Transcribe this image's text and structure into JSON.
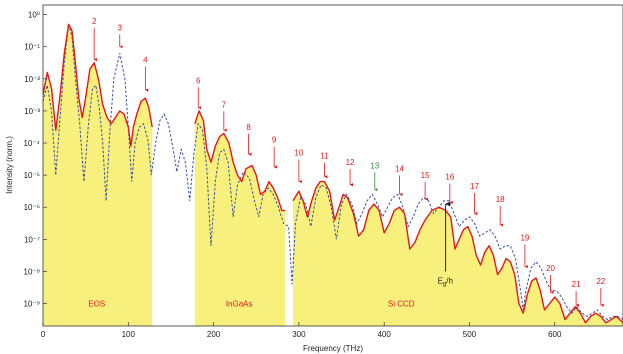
{
  "chart_data": {
    "type": "line",
    "title": "",
    "xlabel": "Frequency (THz)",
    "ylabel": "Intensity (norm.)",
    "xlim": [
      0,
      680
    ],
    "ylim_log10": [
      -9.7,
      0.3
    ],
    "log_y": true,
    "grid": false,
    "x_ticks": [
      0,
      100,
      200,
      300,
      400,
      500,
      600
    ],
    "y_ticks": [
      "10⁰",
      "10⁻¹",
      "10⁻²",
      "10⁻³",
      "10⁻⁴",
      "10⁻⁵",
      "10⁻⁶",
      "10⁻⁷",
      "10⁻⁸",
      "10⁻⁹"
    ],
    "y_tick_exponents": [
      0,
      -1,
      -2,
      -3,
      -4,
      -5,
      -6,
      -7,
      -8,
      -9
    ],
    "series": [
      {
        "color": "#e0191b",
        "style": "solid",
        "points": [
          [
            0,
            -2.5
          ],
          [
            5,
            -1.8
          ],
          [
            10,
            -2.3
          ],
          [
            15,
            -3.6
          ],
          [
            20,
            -2.5
          ],
          [
            25,
            -1.2
          ],
          [
            30,
            -0.3
          ],
          [
            34,
            -0.5
          ],
          [
            38,
            -1.5
          ],
          [
            42,
            -2.6
          ],
          [
            46,
            -3.2
          ],
          [
            50,
            -2.6
          ],
          [
            55,
            -1.7
          ],
          [
            60,
            -1.5
          ],
          [
            65,
            -2.0
          ],
          [
            70,
            -2.8
          ],
          [
            75,
            -3.2
          ],
          [
            80,
            -3.4
          ],
          [
            85,
            -3.2
          ],
          [
            90,
            -3.0
          ],
          [
            95,
            -3.1
          ],
          [
            100,
            -3.5
          ],
          [
            103,
            -4.1
          ],
          [
            106,
            -3.5
          ],
          [
            110,
            -3.1
          ],
          [
            115,
            -2.7
          ],
          [
            120,
            -2.6
          ],
          [
            124,
            -2.9
          ],
          [
            128,
            -3.5
          ],
          [
            178,
            -3.4
          ],
          [
            183,
            -3.0
          ],
          [
            188,
            -3.3
          ],
          [
            192,
            -4.2
          ],
          [
            197,
            -4.6
          ],
          [
            202,
            -4.1
          ],
          [
            207,
            -3.8
          ],
          [
            212,
            -3.7
          ],
          [
            218,
            -4.0
          ],
          [
            223,
            -4.6
          ],
          [
            228,
            -5.0
          ],
          [
            233,
            -5.2
          ],
          [
            238,
            -4.8
          ],
          [
            245,
            -4.7
          ],
          [
            250,
            -5.0
          ],
          [
            255,
            -5.6
          ],
          [
            260,
            -5.5
          ],
          [
            265,
            -5.2
          ],
          [
            270,
            -5.4
          ],
          [
            275,
            -5.7
          ],
          [
            280,
            -6.1
          ],
          [
            284,
            -6.1
          ],
          [
            293,
            -5.8
          ],
          [
            300,
            -5.5
          ],
          [
            305,
            -5.8
          ],
          [
            310,
            -6.3
          ],
          [
            315,
            -5.8
          ],
          [
            320,
            -5.4
          ],
          [
            325,
            -5.2
          ],
          [
            330,
            -5.2
          ],
          [
            336,
            -5.5
          ],
          [
            342,
            -6.4
          ],
          [
            347,
            -6.0
          ],
          [
            352,
            -5.6
          ],
          [
            357,
            -5.7
          ],
          [
            364,
            -6.2
          ],
          [
            370,
            -6.9
          ],
          [
            376,
            -6.7
          ],
          [
            382,
            -6.1
          ],
          [
            388,
            -5.9
          ],
          [
            394,
            -6.1
          ],
          [
            400,
            -6.8
          ],
          [
            406,
            -6.5
          ],
          [
            412,
            -6.1
          ],
          [
            418,
            -6.0
          ],
          [
            424,
            -6.2
          ],
          [
            430,
            -7.3
          ],
          [
            436,
            -7.1
          ],
          [
            442,
            -6.7
          ],
          [
            448,
            -6.4
          ],
          [
            456,
            -6.1
          ],
          [
            464,
            -6.0
          ],
          [
            472,
            -6.1
          ],
          [
            478,
            -6.3
          ],
          [
            483,
            -7.3
          ],
          [
            488,
            -7.0
          ],
          [
            493,
            -6.7
          ],
          [
            498,
            -6.6
          ],
          [
            503,
            -6.9
          ],
          [
            508,
            -7.5
          ],
          [
            513,
            -7.8
          ],
          [
            518,
            -7.4
          ],
          [
            523,
            -7.2
          ],
          [
            528,
            -7.5
          ],
          [
            533,
            -8.1
          ],
          [
            538,
            -7.9
          ],
          [
            543,
            -7.6
          ],
          [
            548,
            -7.7
          ],
          [
            553,
            -8.1
          ],
          [
            558,
            -9.0
          ],
          [
            563,
            -9.3
          ],
          [
            568,
            -8.7
          ],
          [
            573,
            -8.3
          ],
          [
            578,
            -8.2
          ],
          [
            583,
            -8.6
          ],
          [
            588,
            -9.2
          ],
          [
            594,
            -9.0
          ],
          [
            600,
            -8.8
          ],
          [
            606,
            -9.0
          ],
          [
            612,
            -9.5
          ],
          [
            618,
            -9.3
          ],
          [
            624,
            -9.1
          ],
          [
            630,
            -9.3
          ],
          [
            636,
            -9.6
          ],
          [
            642,
            -9.4
          ],
          [
            648,
            -9.3
          ],
          [
            654,
            -9.4
          ],
          [
            660,
            -9.6
          ],
          [
            666,
            -9.5
          ],
          [
            672,
            -9.4
          ],
          [
            680,
            -9.6
          ]
        ]
      },
      {
        "color": "#3a4fa0",
        "style": "dashed",
        "points": [
          [
            0,
            -2.7
          ],
          [
            5,
            -2.2
          ],
          [
            10,
            -3.0
          ],
          [
            15,
            -5.0
          ],
          [
            20,
            -3.2
          ],
          [
            25,
            -1.5
          ],
          [
            30,
            -0.3
          ],
          [
            34,
            -0.7
          ],
          [
            38,
            -2.0
          ],
          [
            43,
            -3.4
          ],
          [
            48,
            -5.2
          ],
          [
            53,
            -3.5
          ],
          [
            58,
            -2.3
          ],
          [
            62,
            -2.2
          ],
          [
            66,
            -2.9
          ],
          [
            70,
            -4.0
          ],
          [
            74,
            -5.8
          ],
          [
            78,
            -3.8
          ],
          [
            83,
            -2.0
          ],
          [
            90,
            -1.2
          ],
          [
            96,
            -2.0
          ],
          [
            100,
            -3.5
          ],
          [
            104,
            -5.2
          ],
          [
            108,
            -4.0
          ],
          [
            113,
            -3.5
          ],
          [
            118,
            -3.4
          ],
          [
            123,
            -3.9
          ],
          [
            127,
            -5.0
          ],
          [
            132,
            -4.0
          ],
          [
            137,
            -3.3
          ],
          [
            142,
            -3.1
          ],
          [
            147,
            -3.4
          ],
          [
            152,
            -4.1
          ],
          [
            157,
            -4.9
          ],
          [
            162,
            -4.2
          ],
          [
            167,
            -4.6
          ],
          [
            172,
            -5.8
          ],
          [
            177,
            -4.3
          ],
          [
            182,
            -3.4
          ],
          [
            187,
            -3.6
          ],
          [
            192,
            -4.8
          ],
          [
            197,
            -7.2
          ],
          [
            202,
            -5.2
          ],
          [
            207,
            -4.3
          ],
          [
            212,
            -4.2
          ],
          [
            217,
            -4.6
          ],
          [
            223,
            -6.3
          ],
          [
            228,
            -5.3
          ],
          [
            235,
            -4.9
          ],
          [
            242,
            -5.1
          ],
          [
            248,
            -5.8
          ],
          [
            253,
            -6.3
          ],
          [
            258,
            -5.6
          ],
          [
            264,
            -5.4
          ],
          [
            270,
            -5.6
          ],
          [
            276,
            -6.0
          ],
          [
            282,
            -6.5
          ],
          [
            288,
            -6.6
          ],
          [
            292,
            -8.4
          ],
          [
            296,
            -6.5
          ],
          [
            302,
            -5.7
          ],
          [
            308,
            -5.9
          ],
          [
            314,
            -6.6
          ],
          [
            320,
            -5.7
          ],
          [
            326,
            -5.3
          ],
          [
            332,
            -5.4
          ],
          [
            338,
            -6.0
          ],
          [
            344,
            -7.0
          ],
          [
            350,
            -5.9
          ],
          [
            356,
            -5.6
          ],
          [
            362,
            -5.9
          ],
          [
            368,
            -6.5
          ],
          [
            374,
            -6.2
          ],
          [
            380,
            -5.8
          ],
          [
            386,
            -5.6
          ],
          [
            392,
            -5.9
          ],
          [
            398,
            -6.3
          ],
          [
            404,
            -6.0
          ],
          [
            410,
            -5.7
          ],
          [
            416,
            -5.6
          ],
          [
            422,
            -6.0
          ],
          [
            428,
            -6.6
          ],
          [
            434,
            -6.3
          ],
          [
            440,
            -5.9
          ],
          [
            446,
            -5.7
          ],
          [
            452,
            -5.8
          ],
          [
            458,
            -6.2
          ],
          [
            464,
            -6.0
          ],
          [
            470,
            -5.8
          ],
          [
            476,
            -5.8
          ],
          [
            482,
            -6.2
          ],
          [
            488,
            -6.6
          ],
          [
            494,
            -6.4
          ],
          [
            500,
            -6.3
          ],
          [
            506,
            -6.5
          ],
          [
            512,
            -6.9
          ],
          [
            518,
            -6.8
          ],
          [
            524,
            -6.7
          ],
          [
            530,
            -6.9
          ],
          [
            536,
            -7.3
          ],
          [
            542,
            -7.2
          ],
          [
            548,
            -7.2
          ],
          [
            554,
            -7.6
          ],
          [
            560,
            -8.6
          ],
          [
            563,
            -9.2
          ],
          [
            566,
            -8.6
          ],
          [
            572,
            -7.9
          ],
          [
            578,
            -7.7
          ],
          [
            584,
            -7.9
          ],
          [
            590,
            -8.3
          ],
          [
            596,
            -8.6
          ],
          [
            602,
            -8.6
          ],
          [
            608,
            -8.8
          ],
          [
            614,
            -9.1
          ],
          [
            620,
            -9.3
          ],
          [
            626,
            -9.1
          ],
          [
            632,
            -9.3
          ],
          [
            638,
            -9.4
          ],
          [
            644,
            -9.3
          ],
          [
            650,
            -9.2
          ],
          [
            656,
            -9.4
          ],
          [
            662,
            -9.5
          ],
          [
            668,
            -9.4
          ],
          [
            674,
            -9.4
          ],
          [
            680,
            -9.5
          ]
        ]
      }
    ],
    "fill_color": "#f7f07c",
    "fill_segments": [
      [
        0,
        128
      ],
      [
        178,
        284
      ],
      [
        293,
        680
      ]
    ],
    "regions": [
      {
        "label": "EOS",
        "x": 63,
        "y": -9.1
      },
      {
        "label": "InGaAs",
        "x": 230,
        "y": -9.1
      },
      {
        "label": "Si CCD",
        "x": 420,
        "y": -9.1
      }
    ],
    "peak_annotations": [
      {
        "label": "2",
        "x": 60,
        "y_top": -0.35,
        "y_tip": -1.4,
        "color": "#e0191b"
      },
      {
        "label": "3",
        "x": 90,
        "y_top": -0.55,
        "y_tip": -1.0,
        "color": "#e0191b"
      },
      {
        "label": "4",
        "x": 120,
        "y_top": -1.55,
        "y_tip": -2.35,
        "color": "#e0191b"
      },
      {
        "label": "6",
        "x": 182,
        "y_top": -2.2,
        "y_tip": -2.9,
        "color": "#e0191b"
      },
      {
        "label": "7",
        "x": 212,
        "y_top": -2.95,
        "y_tip": -3.6,
        "color": "#e0191b"
      },
      {
        "label": "8",
        "x": 241,
        "y_top": -3.65,
        "y_tip": -4.35,
        "color": "#e0191b"
      },
      {
        "label": "9",
        "x": 271,
        "y_top": -4.05,
        "y_tip": -4.75,
        "color": "#e0191b"
      },
      {
        "label": "10",
        "x": 300,
        "y_top": -4.45,
        "y_tip": -5.2,
        "color": "#e0191b"
      },
      {
        "label": "11",
        "x": 330,
        "y_top": -4.55,
        "y_tip": -5.05,
        "color": "#e0191b"
      },
      {
        "label": "12",
        "x": 360,
        "y_top": -4.75,
        "y_tip": -5.3,
        "color": "#e0191b"
      },
      {
        "label": "13",
        "x": 389,
        "y_top": -4.85,
        "y_tip": -5.45,
        "color": "#2e8b3a"
      },
      {
        "label": "14",
        "x": 418,
        "y_top": -4.95,
        "y_tip": -5.6,
        "color": "#e0191b"
      },
      {
        "label": "15",
        "x": 448,
        "y_top": -5.15,
        "y_tip": -5.75,
        "color": "#e0191b"
      },
      {
        "label": "16",
        "x": 477,
        "y_top": -5.2,
        "y_tip": -5.85,
        "color": "#e0191b"
      },
      {
        "label": "17",
        "x": 506,
        "y_top": -5.5,
        "y_tip": -6.2,
        "color": "#e0191b"
      },
      {
        "label": "18",
        "x": 536,
        "y_top": -5.9,
        "y_tip": -6.55,
        "color": "#e0191b"
      },
      {
        "label": "19",
        "x": 565,
        "y_top": -7.1,
        "y_tip": -7.85,
        "color": "#e0191b"
      },
      {
        "label": "20",
        "x": 595,
        "y_top": -8.05,
        "y_tip": -8.65,
        "color": "#e0191b"
      },
      {
        "label": "21",
        "x": 625,
        "y_top": -8.55,
        "y_tip": -9.05,
        "color": "#e0191b"
      },
      {
        "label": "22",
        "x": 654,
        "y_top": -8.45,
        "y_tip": -9.05,
        "color": "#e0191b"
      }
    ],
    "eg_annotation": {
      "label_main": "E",
      "label_sub": "g",
      "label_tail": "/h",
      "x": 472,
      "y_tip": -5.9,
      "y_base": -8.0
    }
  }
}
